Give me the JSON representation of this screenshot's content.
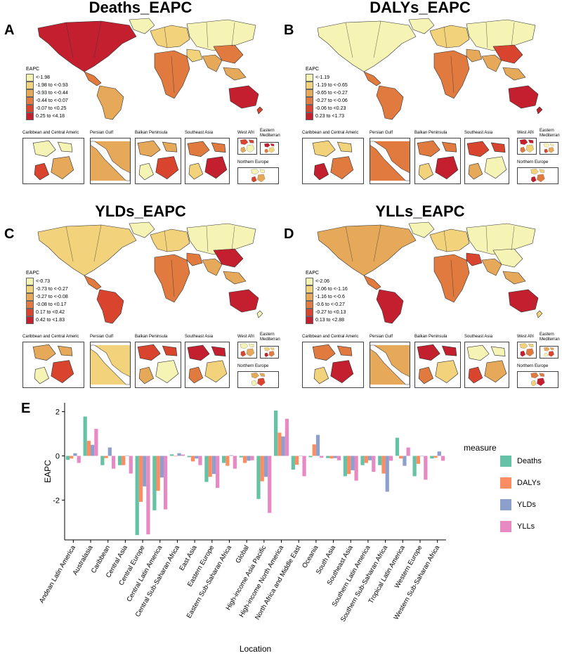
{
  "panels": [
    {
      "letter": "A",
      "title": "Deaths_EAPC",
      "legend_title": "EAPC",
      "legend": [
        "<-1.98",
        "-1.98 to <-0.93",
        "-0.93 to <-0.44",
        "-0.44 to <-0.07",
        "-0.07 to <0.25",
        "0.25 to <4.18"
      ],
      "insets": [
        "Caribbean and Central Americ",
        "Persian Gulf",
        "Balkan Peninsula",
        "Southeast Asia",
        "West Afri",
        "Eastern Mediterran",
        "Northern Europe"
      ]
    },
    {
      "letter": "B",
      "title": "DALYs_EAPC",
      "legend_title": "EAPC",
      "legend": [
        "<-1.19",
        "-1.19 to <-0.65",
        "-0.65 to <-0.27",
        "-0.27 to <-0.06",
        "-0.06 to <0.23",
        "0.23 to <1.73"
      ],
      "insets": [
        "Caribbean and Central Americ",
        "Persian Gulf",
        "Balkan Peninsula",
        "Southeast Asia",
        "West Afri",
        "Eastern Mediterran",
        "Northern Europe"
      ]
    },
    {
      "letter": "C",
      "title": "YLDs_EAPC",
      "legend_title": "EAPC",
      "legend": [
        "<-0.73",
        "-0.73 to <-0.27",
        "-0.27 to <-0.08",
        "-0.08 to <0.17",
        "0.17 to <0.42",
        "0.42 to <1.83"
      ],
      "insets": [
        "Caribbean and Central Americ",
        "Persian Gulf",
        "Balkan Peninsula",
        "Southeast Asia",
        "West Afri",
        "Eastern Mediterran",
        "Northern Europe"
      ]
    },
    {
      "letter": "D",
      "title": "YLLs_EAPC",
      "legend_title": "EAPC",
      "legend": [
        "<-2.06",
        "-2.06 to <-1.16",
        "-1.16 to <-0.6",
        "-0.6 to <-0.27",
        "-0.27 to <0.13",
        "0.13 to <2.88"
      ],
      "insets": [
        "Caribbean and Central Americ",
        "Persian Gulf",
        "Balkan Peninsula",
        "Southeast Asia",
        "West Afri",
        "Eastern Mediterran",
        "Northern Europe"
      ]
    }
  ],
  "colors": {
    "scale": [
      "#f6f4b4",
      "#f2d27a",
      "#e6a95a",
      "#e07a3e",
      "#d9442f",
      "#c41f2f"
    ],
    "water": "#ffffff",
    "border": "#333333"
  },
  "chart_data": {
    "type": "bar",
    "panel_letter": "E",
    "xlabel": "Location",
    "ylabel": "EAPC",
    "ylim": [
      -3.8,
      2.4
    ],
    "yticks": [
      -2,
      0,
      2
    ],
    "legend_title": "measure",
    "categories": [
      "Andean Latin America",
      "Australasia",
      "Caribbean",
      "Central Asia",
      "Central Europe",
      "Central Latin America",
      "Central Sub-Saharan Africa",
      "East Asia",
      "Eastern Europe",
      "Eastern Sub-Saharan Africa",
      "Global",
      "High-income Asia Pacific",
      "High-income North America",
      "North Africa and Middle East",
      "Oceania",
      "South Asia",
      "Southeast Asia",
      "Southern Latin America",
      "Southern Sub-Saharan Africa",
      "Tropical Latin America",
      "Western Europe",
      "Western Sub-Saharan Africa"
    ],
    "series": [
      {
        "name": "Deaths",
        "color": "#66c2a5",
        "values": [
          -0.18,
          1.78,
          -0.42,
          -0.42,
          -3.58,
          -2.46,
          0.07,
          -0.06,
          -1.18,
          -0.32,
          -0.07,
          -1.95,
          2.05,
          -0.62,
          -0.06,
          -0.1,
          -0.92,
          -0.42,
          -0.42,
          0.82,
          -0.92,
          -0.12
        ]
      },
      {
        "name": "DALYs",
        "color": "#fc8d62",
        "values": [
          -0.12,
          0.68,
          -0.1,
          -0.42,
          -2.08,
          -1.58,
          -0.02,
          -0.25,
          -0.95,
          -0.45,
          -0.32,
          -1.15,
          1.05,
          -0.4,
          0.52,
          -0.12,
          -0.82,
          -0.32,
          -0.8,
          -0.12,
          -0.36,
          -0.08
        ]
      },
      {
        "name": "YLDs",
        "color": "#8da0cb",
        "values": [
          0.12,
          0.5,
          0.38,
          0.02,
          -1.38,
          -0.98,
          0.12,
          -0.12,
          -0.82,
          0.03,
          -0.22,
          -0.95,
          0.88,
          0.0,
          0.95,
          -0.1,
          -0.65,
          -0.2,
          -1.62,
          -0.45,
          -0.02,
          0.2
        ]
      },
      {
        "name": "YLLs",
        "color": "#e78ac3",
        "values": [
          -0.32,
          1.22,
          -0.58,
          -0.8,
          -3.55,
          -2.42,
          0.06,
          -0.42,
          -1.45,
          -0.58,
          -0.2,
          -2.58,
          1.68,
          -0.92,
          -0.08,
          -0.2,
          -1.12,
          -0.72,
          -0.22,
          0.38,
          -1.08,
          -0.22
        ]
      }
    ]
  }
}
